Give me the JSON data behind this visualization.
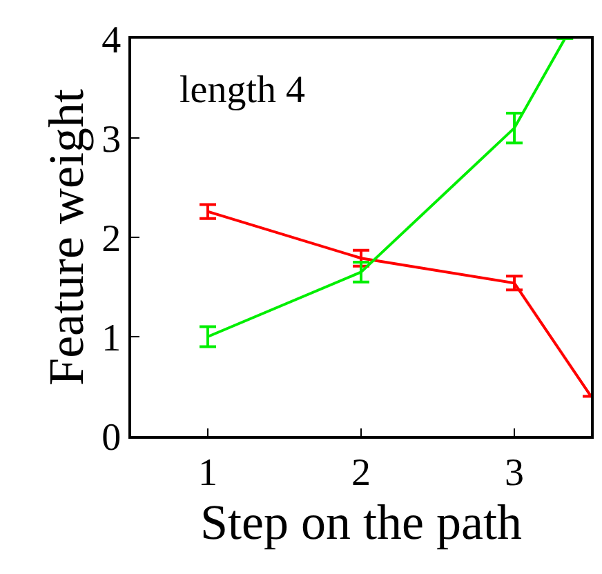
{
  "chart_data": {
    "type": "line",
    "xlabel": "Step on the path",
    "ylabel": "Feature weight",
    "annotations": [
      "length 4"
    ],
    "xlim": [
      0.5,
      3.5
    ],
    "ylim": [
      0,
      4
    ],
    "xticks": [
      1,
      2,
      3
    ],
    "yticks": [
      0,
      1,
      2,
      3,
      4
    ],
    "legend": false,
    "line_style": "solid",
    "series": [
      {
        "color": "#ff0000",
        "x": [
          1,
          2,
          3,
          3.5
        ],
        "values": [
          2.26,
          1.79,
          1.54,
          0.4
        ],
        "errors": [
          0.07,
          0.08,
          0.07,
          null
        ]
      },
      {
        "color": "#00ee00",
        "x": [
          1,
          2,
          3,
          3.33
        ],
        "values": [
          1.0,
          1.65,
          3.1,
          4.0
        ],
        "errors": [
          0.1,
          0.1,
          0.15,
          null
        ]
      }
    ]
  }
}
